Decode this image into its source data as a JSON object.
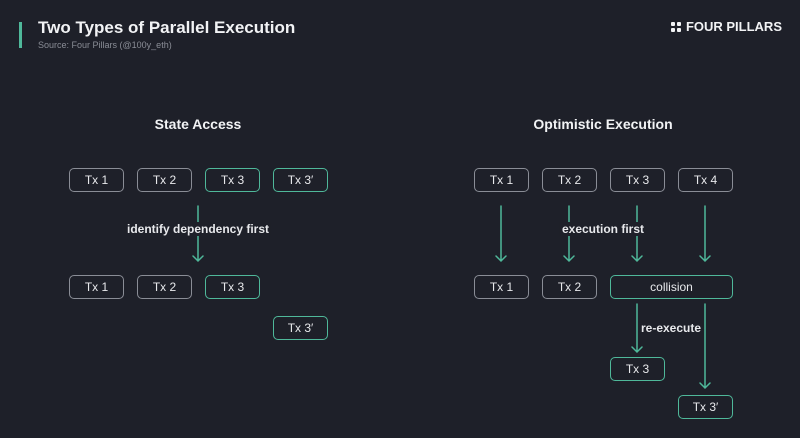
{
  "header": {
    "title": "Two Types of Parallel Execution",
    "source": "Source: Four Pillars (@100y_eth)",
    "brand": "FOUR PILLARS"
  },
  "colors": {
    "background": "#1e2029",
    "accent": "#4fb89a",
    "neutral_border": "#8a8d96"
  },
  "state_access": {
    "title": "State Access",
    "row1": [
      "Tx 1",
      "Tx 2",
      "Tx 3",
      "Tx 3′"
    ],
    "label": "identify dependency first",
    "row2": [
      "Tx 1",
      "Tx 2",
      "Tx 3"
    ],
    "row3": "Tx 3′"
  },
  "optimistic": {
    "title": "Optimistic Execution",
    "row1": [
      "Tx 1",
      "Tx 2",
      "Tx 3",
      "Tx 4"
    ],
    "label1": "execution first",
    "row2": [
      "Tx 1",
      "Tx 2",
      "collision"
    ],
    "label2": "re-execute",
    "tx3": "Tx 3",
    "tx3p": "Tx 3′"
  }
}
